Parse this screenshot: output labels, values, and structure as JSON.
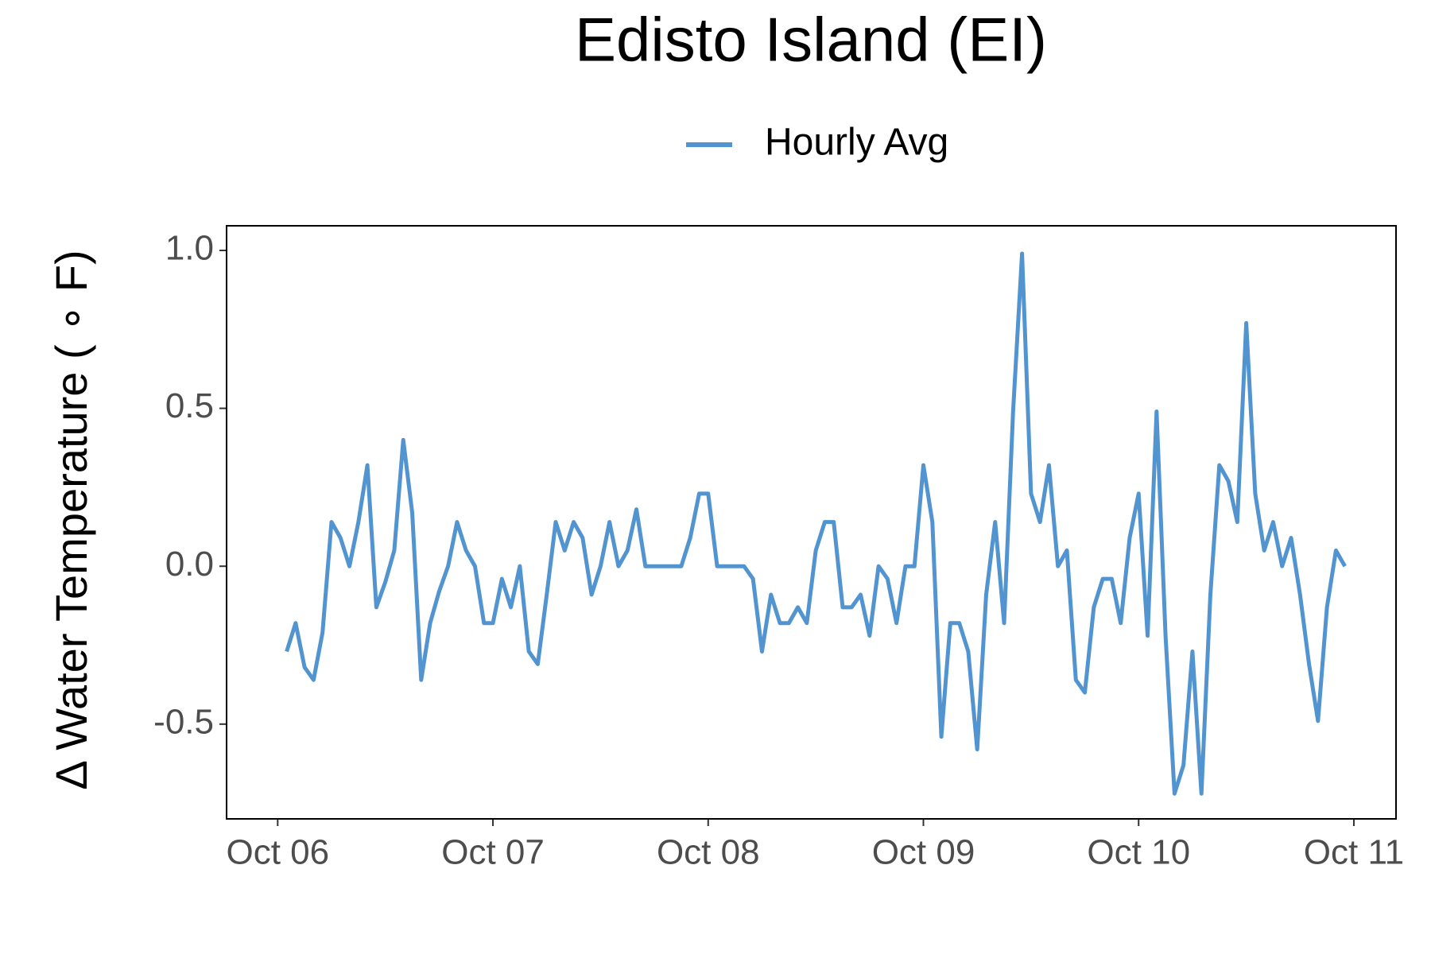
{
  "chart_data": {
    "type": "line",
    "title": "Edisto Island (EI)",
    "y_label": "Δ Water Temperature ( ∘ F)",
    "legend_position": "top",
    "grid": false,
    "x": [
      1,
      2,
      3,
      4,
      5,
      6,
      7,
      8,
      9,
      10,
      11,
      12,
      13,
      14,
      15,
      16,
      17,
      18,
      19,
      20,
      21,
      22,
      23,
      24,
      25,
      26,
      27,
      28,
      29,
      30,
      31,
      32,
      33,
      34,
      35,
      36,
      37,
      38,
      39,
      40,
      41,
      42,
      43,
      44,
      45,
      46,
      47,
      48,
      49,
      50,
      51,
      52,
      53,
      54,
      55,
      56,
      57,
      58,
      59,
      60,
      61,
      62,
      63,
      64,
      65,
      66,
      67,
      68,
      69,
      70,
      71,
      72,
      73,
      74,
      75,
      76,
      77,
      78,
      79,
      80,
      81,
      82,
      83,
      84,
      85,
      86,
      87,
      88,
      89,
      90,
      91,
      92,
      93,
      94,
      95,
      96,
      97,
      98,
      99,
      100,
      101,
      102,
      103,
      104,
      105,
      106,
      107,
      108,
      109,
      110,
      111,
      112,
      113,
      114,
      115,
      116,
      117,
      118,
      119
    ],
    "series": [
      {
        "name": "Hourly Avg",
        "color": "#5294d0",
        "values": [
          -0.27,
          -0.18,
          -0.32,
          -0.36,
          -0.21,
          0.14,
          0.09,
          0,
          0.14,
          0.32,
          -0.13,
          -0.05,
          0.05,
          0.4,
          0.17,
          -0.36,
          -0.18,
          -0.08,
          0,
          0.14,
          0.05,
          0,
          -0.18,
          -0.18,
          -0.04,
          -0.13,
          0,
          -0.27,
          -0.31,
          -0.09,
          0.14,
          0.05,
          0.14,
          0.09,
          -0.09,
          0,
          0.14,
          0,
          0.05,
          0.18,
          0,
          0,
          0,
          0,
          0,
          0.09,
          0.23,
          0.23,
          0,
          0,
          0,
          0,
          -0.04,
          -0.27,
          -0.09,
          -0.18,
          -0.18,
          -0.13,
          -0.18,
          0.05,
          0.14,
          0.14,
          -0.13,
          -0.13,
          -0.09,
          -0.22,
          0,
          -0.04,
          -0.18,
          0,
          0,
          0.32,
          0.14,
          -0.54,
          -0.18,
          -0.18,
          -0.27,
          -0.58,
          -0.09,
          0.14,
          -0.18,
          0.49,
          0.99,
          0.23,
          0.14,
          0.32,
          0,
          0.05,
          -0.36,
          -0.4,
          -0.13,
          -0.04,
          -0.04,
          -0.18,
          0.09,
          0.23,
          -0.22,
          0.49,
          -0.22,
          -0.72,
          -0.63,
          -0.27,
          -0.72,
          -0.09,
          0.32,
          0.27,
          0.14,
          0.77,
          0.23,
          0.05,
          0.14,
          0,
          0.09,
          -0.09,
          -0.31,
          -0.49,
          -0.13,
          0.05,
          0
        ]
      }
    ],
    "xlim": [
      -5.7,
      124.7
    ],
    "xticks": [
      {
        "value": 0,
        "label": "Oct 06"
      },
      {
        "value": 24,
        "label": "Oct 07"
      },
      {
        "value": 48,
        "label": "Oct 08"
      },
      {
        "value": 72,
        "label": "Oct 09"
      },
      {
        "value": 96,
        "label": "Oct 10"
      },
      {
        "value": 120,
        "label": "Oct 11"
      }
    ],
    "ylim": [
      -0.8,
      1.078
    ],
    "yticks": [
      -0.5,
      {
        "value": 0,
        "label": "0.0"
      },
      0.5,
      {
        "value": 1,
        "label": "1.0"
      }
    ]
  }
}
